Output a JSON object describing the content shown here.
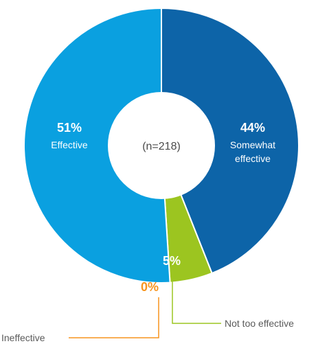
{
  "chart_data": {
    "type": "pie",
    "donut": true,
    "center_text": "(n=218)",
    "slices": [
      {
        "label_lines": [
          "Somewhat",
          "effective"
        ],
        "value": 44,
        "value_text": "44%",
        "color": "#0d64a8"
      },
      {
        "label_lines": [],
        "value": 5,
        "value_text": "5%",
        "color": "#9cc520"
      },
      {
        "label_lines": [],
        "value": 0,
        "value_text": "0%",
        "color": "#f7941d"
      },
      {
        "label_lines": [
          "Effective"
        ],
        "value": 51,
        "value_text": "51%",
        "color": "#0aa0e0"
      }
    ],
    "callouts": [
      {
        "text": "Not too effective",
        "slice": 1
      },
      {
        "text": "Ineffective",
        "slice": 2
      }
    ]
  }
}
